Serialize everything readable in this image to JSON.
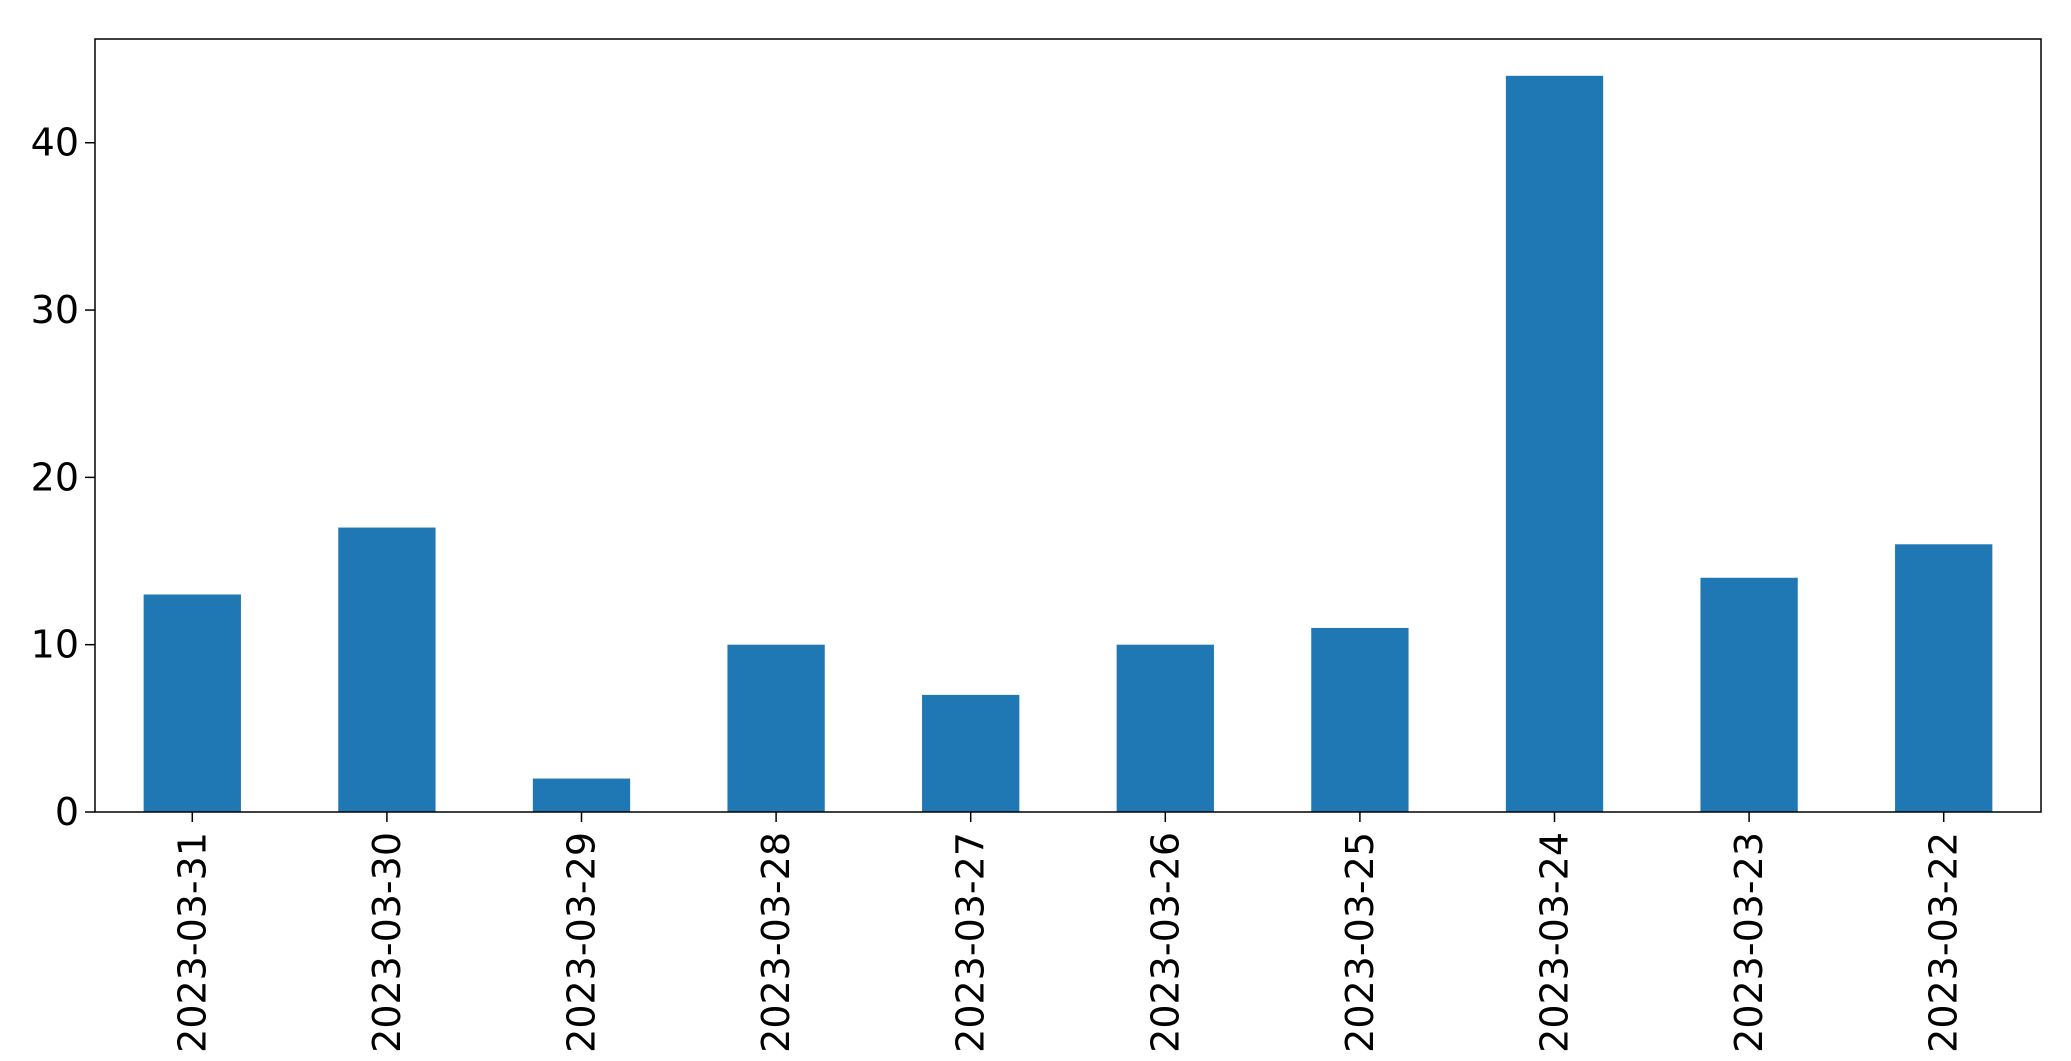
{
  "chart_data": {
    "type": "bar",
    "title": "",
    "xlabel": "",
    "ylabel": "",
    "categories": [
      "2023-03-31",
      "2023-03-30",
      "2023-03-29",
      "2023-03-28",
      "2023-03-27",
      "2023-03-26",
      "2023-03-25",
      "2023-03-24",
      "2023-03-23",
      "2023-03-22"
    ],
    "values": [
      13,
      17,
      2,
      10,
      7,
      10,
      11,
      44,
      14,
      16
    ],
    "ylim": [
      0,
      46.2
    ],
    "yticks": [
      0,
      10,
      20,
      30,
      40
    ],
    "ytick_labels": [
      "0",
      "10",
      "20",
      "30",
      "40"
    ],
    "xtick_rotation": "vertical",
    "grid": false,
    "legend": "none",
    "bar_color": "#1f77b4",
    "axis_color": "#000000"
  }
}
